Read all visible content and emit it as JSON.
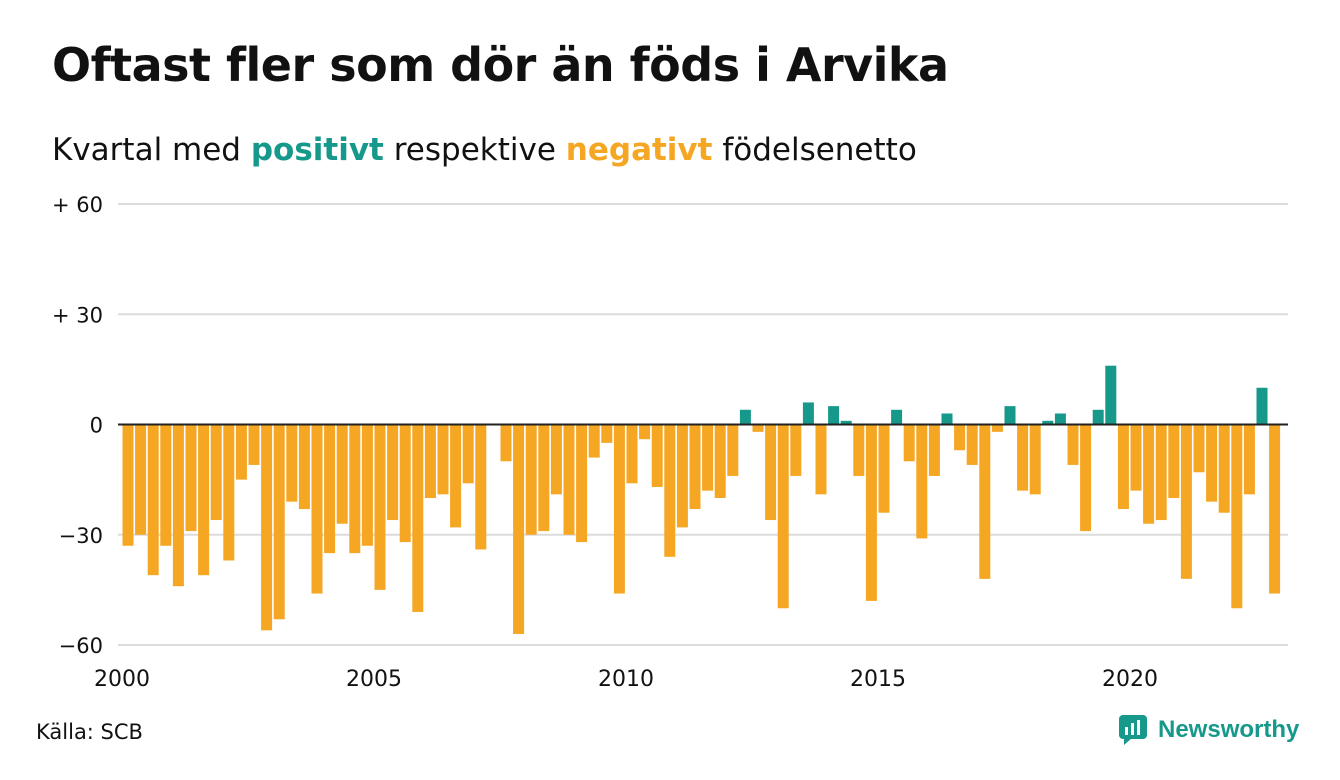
{
  "title": "Oftast fler som dör än föds i Arvika",
  "subtitle": {
    "part1": "Kvartal med ",
    "positive_word": "positivt",
    "part2": " respektive ",
    "negative_word": "negativt",
    "part3": " födelsenetto"
  },
  "colors": {
    "positive": "#16998a",
    "negative": "#f5a623",
    "grid": "#dcdcdc",
    "text": "#111111",
    "brand": "#16998a"
  },
  "source": "Källa: SCB",
  "brand": {
    "name": "Newsworthy",
    "icon": "newsworthy-chart-bubble-icon"
  },
  "chart_data": {
    "type": "bar",
    "title": "Oftast fler som dör än föds i Arvika",
    "subtitle": "Kvartal med positivt respektive negativt födelsenetto",
    "ylim": [
      -60,
      60
    ],
    "y_ticks": [
      {
        "value": 60,
        "label": "+ 60"
      },
      {
        "value": 30,
        "label": "+ 30"
      },
      {
        "value": 0,
        "label": "0"
      },
      {
        "value": -30,
        "label": "−30"
      },
      {
        "value": -60,
        "label": "−60"
      }
    ],
    "x_ticks": [
      "2000",
      "2005",
      "2010",
      "2015",
      "2020"
    ],
    "grid": true,
    "start": "2000 Q1",
    "end": "2023 Q1",
    "categories": [
      "2000 Q1",
      "2000 Q2",
      "2000 Q3",
      "2000 Q4",
      "2001 Q1",
      "2001 Q2",
      "2001 Q3",
      "2001 Q4",
      "2002 Q1",
      "2002 Q2",
      "2002 Q3",
      "2002 Q4",
      "2003 Q1",
      "2003 Q2",
      "2003 Q3",
      "2003 Q4",
      "2004 Q1",
      "2004 Q2",
      "2004 Q3",
      "2004 Q4",
      "2005 Q1",
      "2005 Q2",
      "2005 Q3",
      "2005 Q4",
      "2006 Q1",
      "2006 Q2",
      "2006 Q3",
      "2006 Q4",
      "2007 Q1",
      "2007 Q2",
      "2007 Q3",
      "2007 Q4",
      "2008 Q1",
      "2008 Q2",
      "2008 Q3",
      "2008 Q4",
      "2009 Q1",
      "2009 Q2",
      "2009 Q3",
      "2009 Q4",
      "2010 Q1",
      "2010 Q2",
      "2010 Q3",
      "2010 Q4",
      "2011 Q1",
      "2011 Q2",
      "2011 Q3",
      "2011 Q4",
      "2012 Q1",
      "2012 Q2",
      "2012 Q3",
      "2012 Q4",
      "2013 Q1",
      "2013 Q2",
      "2013 Q3",
      "2013 Q4",
      "2014 Q1",
      "2014 Q2",
      "2014 Q3",
      "2014 Q4",
      "2015 Q1",
      "2015 Q2",
      "2015 Q3",
      "2015 Q4",
      "2016 Q1",
      "2016 Q2",
      "2016 Q3",
      "2016 Q4",
      "2017 Q1",
      "2017 Q2",
      "2017 Q3",
      "2017 Q4",
      "2018 Q1",
      "2018 Q2",
      "2018 Q3",
      "2018 Q4",
      "2019 Q1",
      "2019 Q2",
      "2019 Q3",
      "2019 Q4",
      "2020 Q1",
      "2020 Q2",
      "2020 Q3",
      "2020 Q4",
      "2021 Q1",
      "2021 Q2",
      "2021 Q3",
      "2021 Q4",
      "2022 Q1",
      "2022 Q2",
      "2022 Q3",
      "2022 Q4",
      "2023 Q1"
    ],
    "values": [
      -33,
      -30,
      -41,
      -33,
      -44,
      -29,
      -41,
      -26,
      -37,
      -15,
      -11,
      -56,
      -53,
      -21,
      -23,
      -46,
      -35,
      -27,
      -35,
      -33,
      -45,
      -26,
      -32,
      -51,
      -20,
      -19,
      -28,
      -16,
      -34,
      0,
      -10,
      -57,
      -30,
      -29,
      -19,
      -30,
      -32,
      -9,
      -5,
      -46,
      -16,
      -4,
      -17,
      -36,
      -28,
      -23,
      -18,
      -20,
      -14,
      4,
      -2,
      -26,
      -50,
      -14,
      6,
      -19,
      5,
      1,
      -14,
      -48,
      -24,
      4,
      -10,
      -31,
      -14,
      3,
      -7,
      -11,
      -42,
      -2,
      5,
      -18,
      -19,
      1,
      3,
      -11,
      -29,
      4,
      16,
      -23,
      -18,
      -27,
      -26,
      -20,
      -42,
      -13,
      -21,
      -24,
      -50,
      -19,
      10,
      -46,
      0
    ]
  }
}
